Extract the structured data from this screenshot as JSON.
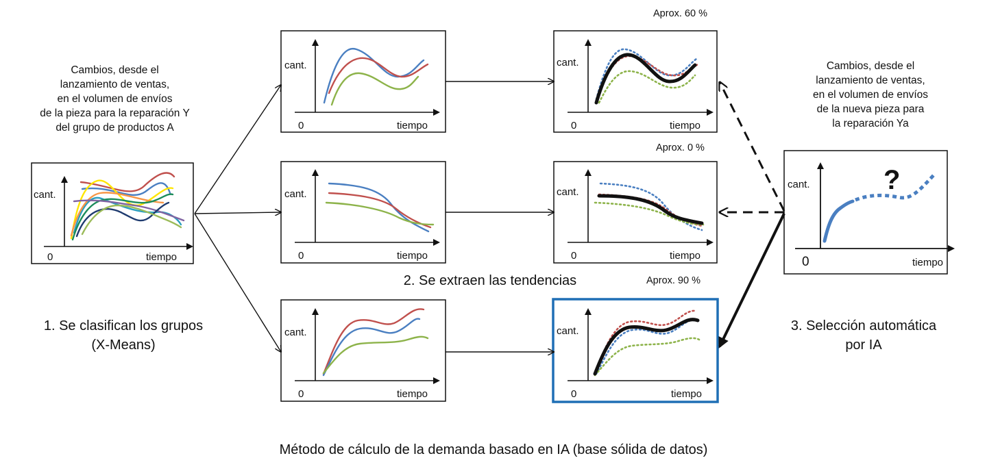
{
  "left_description": [
    "Cambios, desde el",
    "lanzamiento de ventas,",
    "en el volumen de envíos",
    "de la pieza para la reparación Y",
    "del grupo de productos A"
  ],
  "right_description": [
    "Cambios, desde el",
    "lanzamiento de ventas,",
    "en el volumen de envíos",
    "de la nueva pieza para",
    "la reparación Ya"
  ],
  "steps": {
    "classify": [
      "1. Se clasifican los grupos",
      "(X-Means)"
    ],
    "extract": "2. Se extraen las tendencias",
    "select": [
      "3. Selección automática",
      "por IA"
    ]
  },
  "axis": {
    "y_label": "cant.",
    "x_label": "tiempo",
    "origin": "0"
  },
  "percentages": {
    "top": "Aprox. 60 %",
    "middle": "Aprox. 0 %",
    "bottom": "Aprox. 90 %"
  },
  "unknown_mark": "?",
  "caption": "Método de cálculo de la demanda basado en IA (base sólida de datos)",
  "colors": {
    "blue": "#4a7fc1",
    "red": "#c0504d",
    "green": "#8db34a",
    "black": "#111111",
    "highlight": "#1f6fb5"
  }
}
